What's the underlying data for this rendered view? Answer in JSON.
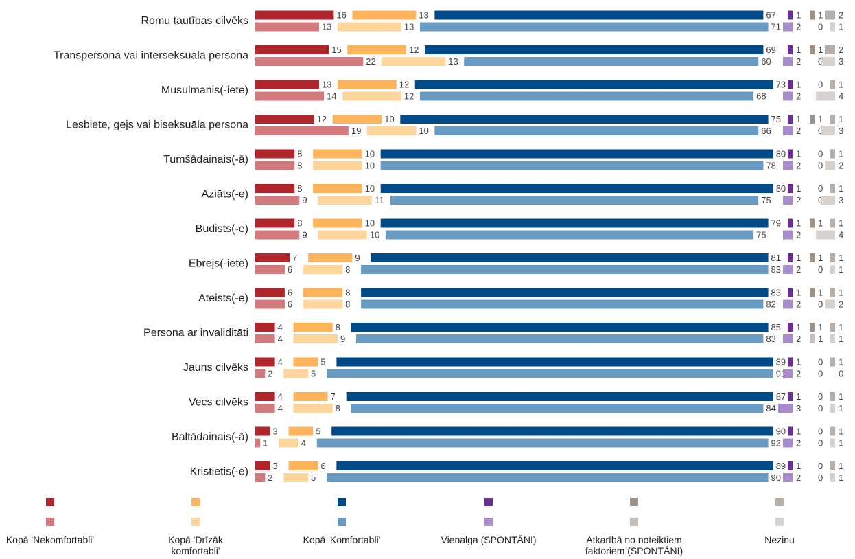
{
  "chart_data": {
    "type": "bar",
    "categories": [
      "Romu tautības cilvēks",
      "Transpersona vai interseksuāla persona",
      "Musulmanis(-iete)",
      "Lesbiete, gejs vai biseksuāla persona",
      "Tumšādainais(-ā)",
      "Aziāts(-e)",
      "Budists(-e)",
      "Ebrejs(-iete)",
      "Ateists(-e)",
      "Persona ar invaliditāti",
      "Jauns cilvēks",
      "Vecs cilvēks",
      "Baltādainais(-ā)",
      "Kristietis(-e)"
    ],
    "series": [
      {
        "name": "Kopā 'Nekomfortabli'",
        "color": "#b0262d",
        "color_light": "#d37a7e",
        "values": [
          16,
          15,
          13,
          12,
          8,
          8,
          8,
          7,
          6,
          4,
          4,
          4,
          3,
          3
        ],
        "values_light": [
          13,
          22,
          14,
          19,
          8,
          9,
          9,
          6,
          6,
          4,
          2,
          4,
          1,
          2
        ]
      },
      {
        "name": "Kopā 'Drīzāk komfortabli'",
        "color": "#fdb45c",
        "color_light": "#fdd59d",
        "values": [
          13,
          12,
          12,
          10,
          10,
          10,
          10,
          9,
          8,
          8,
          5,
          7,
          5,
          6
        ],
        "values_light": [
          13,
          13,
          12,
          10,
          10,
          11,
          10,
          8,
          8,
          9,
          5,
          8,
          4,
          5
        ]
      },
      {
        "name": "Kopā 'Komfortabli'",
        "color": "#004b87",
        "color_light": "#6a9bc3",
        "values": [
          67,
          69,
          73,
          75,
          80,
          80,
          79,
          81,
          83,
          85,
          89,
          87,
          90,
          89
        ],
        "values_light": [
          71,
          60,
          68,
          66,
          78,
          75,
          75,
          83,
          82,
          83,
          91,
          84,
          92,
          90
        ]
      },
      {
        "name": "Vienalga (SPONTĀNI)",
        "color": "#6a2d91",
        "color_light": "#a98ccc",
        "values": [
          1,
          1,
          1,
          1,
          1,
          1,
          1,
          1,
          1,
          1,
          1,
          1,
          1,
          1
        ],
        "values_light": [
          2,
          2,
          2,
          2,
          2,
          2,
          2,
          2,
          2,
          2,
          2,
          3,
          2,
          2
        ]
      },
      {
        "name": "Atkarībā no noteiktiem faktoriem (SPONTĀNI)",
        "color": "#9e918a",
        "color_light": "#c9c0bb",
        "values": [
          1,
          1,
          0,
          1,
          0,
          0,
          1,
          1,
          1,
          1,
          0,
          0,
          0,
          0
        ],
        "values_light": [
          0,
          0,
          0,
          0,
          0,
          0,
          0,
          0,
          0,
          1,
          0,
          0,
          0,
          0
        ]
      },
      {
        "name": "Nezinu",
        "color": "#b8aea8",
        "color_light": "#d8d2ce",
        "values": [
          2,
          2,
          1,
          1,
          1,
          1,
          1,
          1,
          1,
          1,
          1,
          1,
          1,
          1
        ],
        "values_light": [
          1,
          3,
          4,
          3,
          2,
          3,
          4,
          1,
          2,
          1,
          0,
          1,
          1,
          1
        ]
      }
    ]
  }
}
